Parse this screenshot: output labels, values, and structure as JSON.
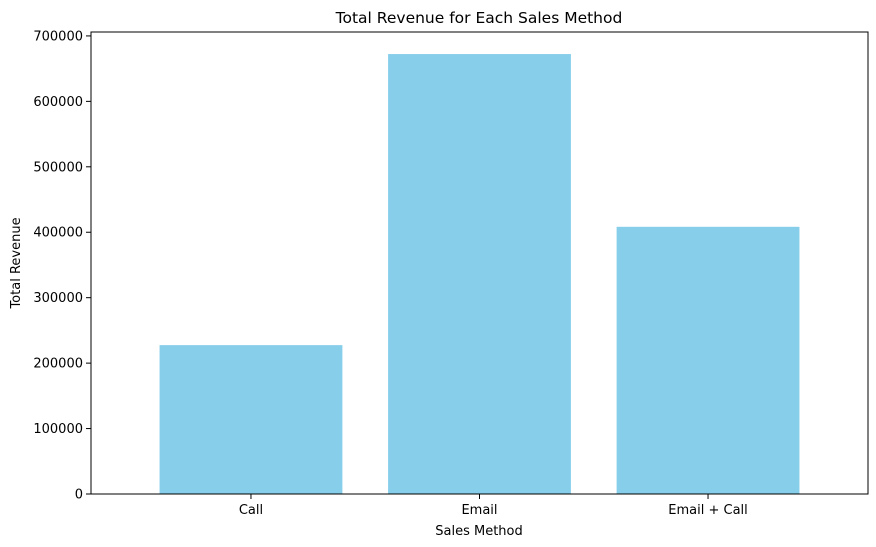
{
  "chart_data": {
    "type": "bar",
    "title": "Total Revenue for Each Sales Method",
    "xlabel": "Sales Method",
    "ylabel": "Total Revenue",
    "categories": [
      "Call",
      "Email",
      "Email + Call"
    ],
    "values": [
      227500,
      672300,
      408300
    ],
    "ylim": [
      0,
      706000
    ],
    "yticks": [
      0,
      100000,
      200000,
      300000,
      400000,
      500000,
      600000,
      700000
    ],
    "bar_color": "#87ceeb",
    "grid": false,
    "legend": "none"
  }
}
